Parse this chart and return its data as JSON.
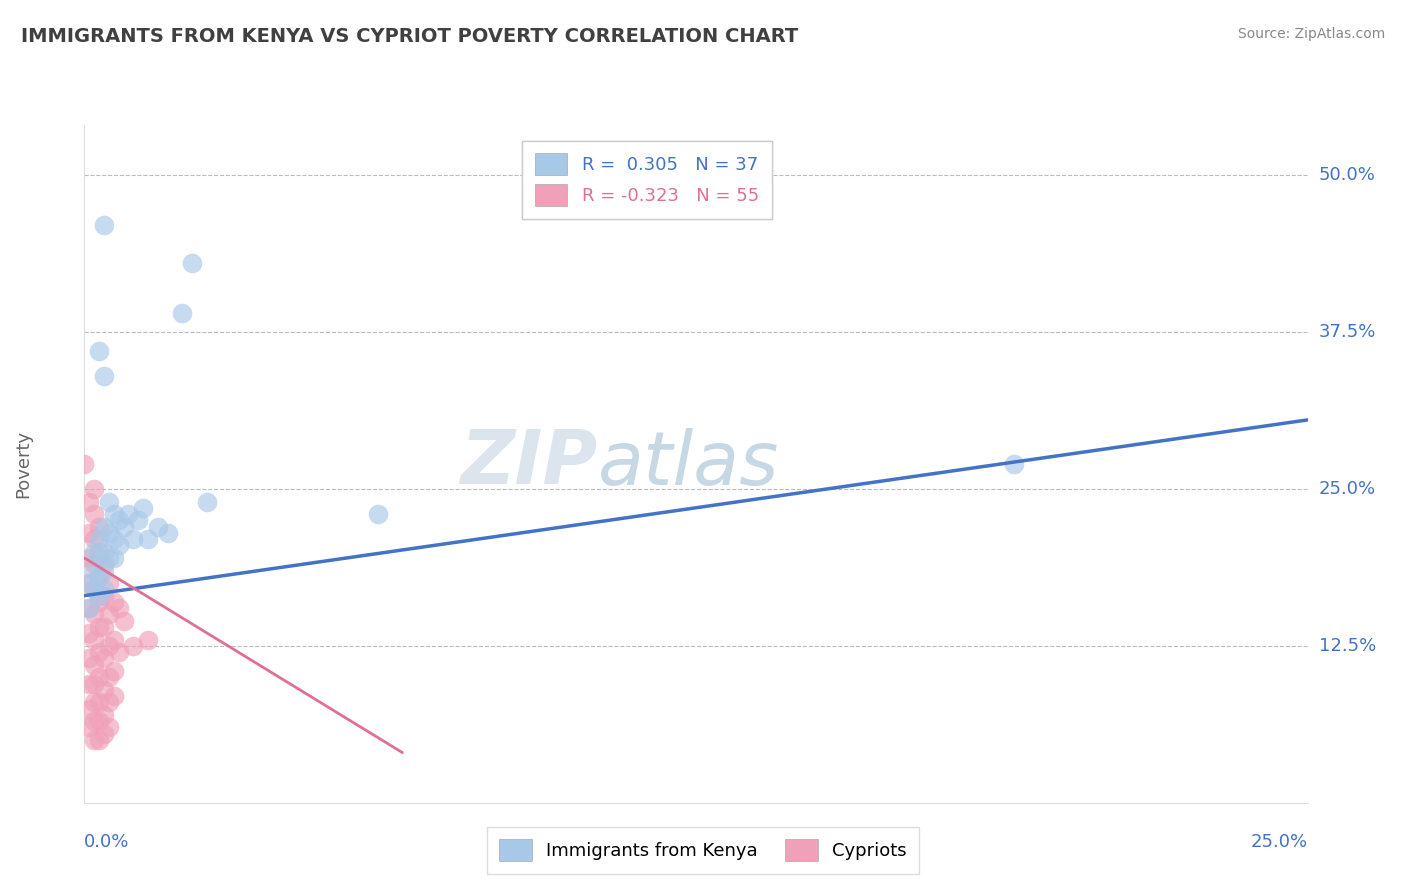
{
  "title": "IMMIGRANTS FROM KENYA VS CYPRIOT POVERTY CORRELATION CHART",
  "source": "Source: ZipAtlas.com",
  "ylabel": "Poverty",
  "ytick_values": [
    0.125,
    0.25,
    0.375,
    0.5
  ],
  "ytick_labels": [
    "12.5%",
    "25.0%",
    "37.5%",
    "50.0%"
  ],
  "xtick_labels": [
    "0.0%",
    "25.0%"
  ],
  "xlim": [
    0.0,
    0.25
  ],
  "ylim": [
    0.0,
    0.54
  ],
  "r_kenya": 0.305,
  "n_kenya": 37,
  "r_cypriot": -0.323,
  "n_cypriot": 55,
  "legend_labels": [
    "Immigrants from Kenya",
    "Cypriots"
  ],
  "watermark_text": "ZIP",
  "watermark_text2": "atlas",
  "blue_scatter_color": "#a8c8e8",
  "pink_scatter_color": "#f0a0b8",
  "blue_line_color": "#4472c4",
  "pink_line_color": "#e07090",
  "right_label_color": "#4472c4",
  "background_color": "#ffffff",
  "grid_color": "#bbbbbb",
  "title_color": "#404040",
  "source_color": "#888888",
  "ylabel_color": "#666666",
  "kenya_scatter": [
    [
      0.001,
      0.175
    ],
    [
      0.001,
      0.155
    ],
    [
      0.002,
      0.2
    ],
    [
      0.002,
      0.185
    ],
    [
      0.002,
      0.17
    ],
    [
      0.003,
      0.21
    ],
    [
      0.003,
      0.195
    ],
    [
      0.003,
      0.18
    ],
    [
      0.003,
      0.165
    ],
    [
      0.004,
      0.22
    ],
    [
      0.004,
      0.2
    ],
    [
      0.004,
      0.185
    ],
    [
      0.004,
      0.17
    ],
    [
      0.005,
      0.215
    ],
    [
      0.005,
      0.195
    ],
    [
      0.005,
      0.24
    ],
    [
      0.006,
      0.21
    ],
    [
      0.006,
      0.195
    ],
    [
      0.007,
      0.225
    ],
    [
      0.007,
      0.205
    ],
    [
      0.008,
      0.22
    ],
    [
      0.009,
      0.23
    ],
    [
      0.01,
      0.21
    ],
    [
      0.011,
      0.225
    ],
    [
      0.012,
      0.235
    ],
    [
      0.013,
      0.21
    ],
    [
      0.015,
      0.22
    ],
    [
      0.017,
      0.215
    ],
    [
      0.02,
      0.39
    ],
    [
      0.022,
      0.43
    ],
    [
      0.025,
      0.24
    ],
    [
      0.06,
      0.23
    ],
    [
      0.19,
      0.27
    ],
    [
      0.003,
      0.36
    ],
    [
      0.004,
      0.46
    ],
    [
      0.004,
      0.34
    ],
    [
      0.006,
      0.23
    ]
  ],
  "cypriot_scatter": [
    [
      0.0,
      0.27
    ],
    [
      0.001,
      0.24
    ],
    [
      0.001,
      0.215
    ],
    [
      0.001,
      0.195
    ],
    [
      0.001,
      0.175
    ],
    [
      0.001,
      0.155
    ],
    [
      0.001,
      0.135
    ],
    [
      0.001,
      0.115
    ],
    [
      0.001,
      0.095
    ],
    [
      0.001,
      0.075
    ],
    [
      0.001,
      0.06
    ],
    [
      0.002,
      0.25
    ],
    [
      0.002,
      0.23
    ],
    [
      0.002,
      0.21
    ],
    [
      0.002,
      0.19
    ],
    [
      0.002,
      0.17
    ],
    [
      0.002,
      0.15
    ],
    [
      0.002,
      0.13
    ],
    [
      0.002,
      0.11
    ],
    [
      0.002,
      0.095
    ],
    [
      0.002,
      0.08
    ],
    [
      0.002,
      0.065
    ],
    [
      0.002,
      0.05
    ],
    [
      0.003,
      0.22
    ],
    [
      0.003,
      0.2
    ],
    [
      0.003,
      0.18
    ],
    [
      0.003,
      0.16
    ],
    [
      0.003,
      0.14
    ],
    [
      0.003,
      0.12
    ],
    [
      0.003,
      0.1
    ],
    [
      0.003,
      0.08
    ],
    [
      0.003,
      0.065
    ],
    [
      0.003,
      0.05
    ],
    [
      0.004,
      0.19
    ],
    [
      0.004,
      0.165
    ],
    [
      0.004,
      0.14
    ],
    [
      0.004,
      0.115
    ],
    [
      0.004,
      0.09
    ],
    [
      0.004,
      0.07
    ],
    [
      0.004,
      0.055
    ],
    [
      0.005,
      0.175
    ],
    [
      0.005,
      0.15
    ],
    [
      0.005,
      0.125
    ],
    [
      0.005,
      0.1
    ],
    [
      0.005,
      0.08
    ],
    [
      0.005,
      0.06
    ],
    [
      0.006,
      0.16
    ],
    [
      0.006,
      0.13
    ],
    [
      0.006,
      0.105
    ],
    [
      0.006,
      0.085
    ],
    [
      0.007,
      0.155
    ],
    [
      0.007,
      0.12
    ],
    [
      0.008,
      0.145
    ],
    [
      0.01,
      0.125
    ],
    [
      0.013,
      0.13
    ]
  ],
  "blue_trend_x": [
    0.0,
    0.25
  ],
  "blue_trend_y": [
    0.165,
    0.305
  ],
  "pink_trend_x": [
    0.0,
    0.065
  ],
  "pink_trend_y": [
    0.195,
    0.04
  ]
}
